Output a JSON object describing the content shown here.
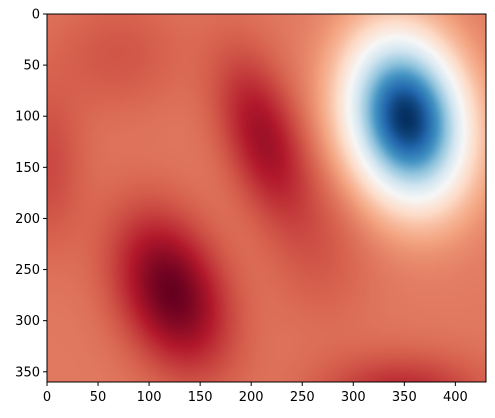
{
  "chart_data": {
    "type": "heatmap",
    "colormap": "RdBu",
    "title": "",
    "xlabel": "",
    "ylabel": "",
    "xlim": [
      0,
      430
    ],
    "ylim": [
      360,
      0
    ],
    "y_axis_inverted": true,
    "grid": false,
    "legend": "none",
    "colorbar": false,
    "x_ticks": [
      0,
      50,
      100,
      150,
      200,
      250,
      300,
      350,
      400
    ],
    "y_ticks": [
      0,
      50,
      100,
      150,
      200,
      250,
      300,
      350
    ],
    "x_tick_labels": [
      "0",
      "50",
      "100",
      "150",
      "200",
      "250",
      "300",
      "350",
      "400"
    ],
    "y_tick_labels": [
      "0",
      "50",
      "100",
      "150",
      "200",
      "250",
      "300",
      "350"
    ],
    "background_level": -1.0,
    "features": [
      {
        "kind": "low",
        "center_x": 352,
        "center_y": 102,
        "radius_x": 38,
        "radius_y": 55,
        "tilt_deg": -12,
        "depth": 3.4
      },
      {
        "kind": "high",
        "center_x": 122,
        "center_y": 272,
        "radius_x": 34,
        "radius_y": 54,
        "tilt_deg": -22,
        "height": 1.05
      },
      {
        "kind": "high",
        "center_x": 212,
        "center_y": 122,
        "radius_x": 26,
        "radius_y": 58,
        "tilt_deg": -18,
        "height": 0.72
      },
      {
        "kind": "high",
        "center_x": 348,
        "center_y": 375,
        "radius_x": 55,
        "radius_y": 28,
        "tilt_deg": 0,
        "height": 0.55
      },
      {
        "kind": "high",
        "center_x": 0,
        "center_y": 150,
        "radius_x": 25,
        "radius_y": 55,
        "tilt_deg": 0,
        "height": 0.3
      },
      {
        "kind": "high",
        "center_x": 70,
        "center_y": 40,
        "radius_x": 45,
        "radius_y": 40,
        "tilt_deg": 0,
        "height": 0.22
      },
      {
        "kind": "high",
        "center_x": 270,
        "center_y": 230,
        "radius_x": 35,
        "radius_y": 55,
        "tilt_deg": 0,
        "height": 0.18
      }
    ]
  },
  "colors": {
    "dark_red": "#67001f",
    "mid_red": "#b2182b",
    "salmon": "#d6604d",
    "light_salmon": "#f4a582",
    "peach": "#fddbc7",
    "white": "#f7f7f7",
    "light_blue": "#d1e5f0",
    "sky_blue": "#92c5de",
    "mid_blue": "#4393c3",
    "blue": "#2166ac",
    "dark_blue": "#053061"
  }
}
